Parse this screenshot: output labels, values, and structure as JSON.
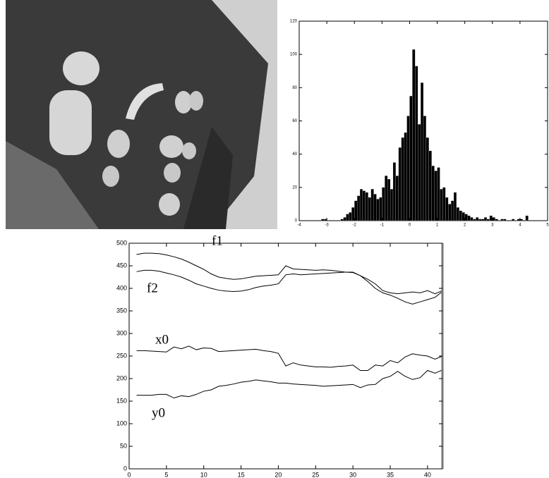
{
  "chart_data": [
    {
      "type": "histogram",
      "bins": [
        -4,
        -3.9,
        -3.8,
        -3.7,
        -3.6,
        -3.5,
        -3.4,
        -3.3,
        -3.2,
        -3.1,
        -3,
        -2.9,
        -2.8,
        -2.7,
        -2.6,
        -2.5,
        -2.4,
        -2.3,
        -2.2,
        -2.1,
        -2,
        -1.9,
        -1.8,
        -1.7,
        -1.6,
        -1.5,
        -1.4,
        -1.3,
        -1.2,
        -1.1,
        -1,
        -0.9,
        -0.8,
        -0.7,
        -0.6,
        -0.5,
        -0.4,
        -0.3,
        -0.2,
        -0.1,
        0,
        0.1,
        0.2,
        0.3,
        0.4,
        0.5,
        0.6,
        0.7,
        0.8,
        0.9,
        1,
        1.1,
        1.2,
        1.3,
        1.4,
        1.5,
        1.6,
        1.7,
        1.8,
        1.9,
        2,
        2.1,
        2.2,
        2.3,
        2.4,
        2.5,
        2.6,
        2.7,
        2.8,
        2.9,
        3,
        3.1,
        3.2,
        3.3,
        3.4,
        3.5,
        3.6,
        3.7,
        3.8,
        3.9,
        4,
        4.1,
        4.2,
        4.3,
        4.4,
        4.5,
        4.6,
        4.7,
        4.8,
        4.9,
        5
      ],
      "counts": [
        0,
        0,
        0,
        0,
        0,
        0,
        0,
        0,
        1,
        1,
        0,
        0,
        0,
        0,
        0,
        1,
        2,
        4,
        5,
        8,
        12,
        15,
        19,
        18,
        17,
        14,
        19,
        16,
        13,
        14,
        20,
        27,
        25,
        19,
        35,
        27,
        44,
        50,
        53,
        63,
        75,
        103,
        93,
        58,
        83,
        63,
        50,
        42,
        33,
        30,
        32,
        19,
        20,
        14,
        10,
        12,
        17,
        8,
        6,
        5,
        4,
        3,
        2,
        1,
        2,
        1,
        1,
        2,
        1,
        3,
        2,
        1,
        0,
        1,
        1,
        0,
        0,
        1,
        0,
        1,
        1,
        0,
        3,
        0,
        0,
        0,
        0,
        0,
        0,
        0
      ],
      "color": "#000000",
      "xlim": [
        -4,
        5
      ],
      "xticks": [
        -4,
        -3,
        -2,
        -1,
        0,
        1,
        2,
        3,
        4,
        5
      ],
      "ylim": [
        0,
        120
      ],
      "yticks": [
        0,
        20,
        40,
        60,
        80,
        100,
        120
      ]
    },
    {
      "type": "line",
      "x": [
        1,
        2,
        3,
        4,
        5,
        6,
        7,
        8,
        9,
        10,
        11,
        12,
        13,
        14,
        15,
        16,
        17,
        18,
        19,
        20,
        21,
        22,
        23,
        24,
        25,
        26,
        27,
        28,
        29,
        30,
        31,
        32,
        33,
        34,
        35,
        36,
        37,
        38,
        39,
        40,
        41,
        42
      ],
      "series": [
        {
          "name": "f1",
          "color": "#000000",
          "values": [
            475,
            478,
            478,
            477,
            474,
            470,
            465,
            458,
            450,
            442,
            432,
            425,
            422,
            420,
            421,
            424,
            427,
            428,
            429,
            430,
            450,
            443,
            442,
            441,
            440,
            441,
            440,
            438,
            436,
            435,
            428,
            420,
            410,
            395,
            390,
            388,
            390,
            392,
            390,
            395,
            388,
            395
          ]
        },
        {
          "name": "f2",
          "color": "#000000",
          "values": [
            437,
            440,
            440,
            438,
            434,
            430,
            425,
            418,
            410,
            405,
            400,
            396,
            394,
            393,
            394,
            397,
            402,
            405,
            407,
            410,
            430,
            432,
            430,
            431,
            432,
            433,
            434,
            435,
            436,
            436,
            428,
            415,
            400,
            390,
            385,
            378,
            370,
            365,
            370,
            375,
            380,
            393
          ]
        },
        {
          "name": "x0",
          "color": "#000000",
          "values": [
            262,
            262,
            261,
            260,
            259,
            270,
            266,
            272,
            264,
            268,
            267,
            260,
            261,
            262,
            263,
            264,
            265,
            262,
            260,
            256,
            228,
            235,
            230,
            228,
            226,
            226,
            225,
            227,
            228,
            230,
            218,
            218,
            230,
            228,
            240,
            235,
            248,
            255,
            252,
            250,
            243,
            250
          ]
        },
        {
          "name": "y0",
          "color": "#000000",
          "values": [
            163,
            163,
            163,
            165,
            165,
            157,
            162,
            160,
            165,
            172,
            175,
            183,
            185,
            188,
            192,
            194,
            197,
            195,
            193,
            190,
            190,
            188,
            187,
            186,
            185,
            183,
            184,
            185,
            186,
            187,
            180,
            186,
            187,
            200,
            205,
            216,
            205,
            198,
            202,
            218,
            212,
            219
          ]
        }
      ],
      "xlim": [
        0,
        42
      ],
      "xticks": [
        0,
        5,
        10,
        15,
        20,
        25,
        30,
        35,
        40
      ],
      "ylim": [
        0,
        500
      ],
      "yticks": [
        0,
        50,
        100,
        150,
        200,
        250,
        300,
        350,
        400,
        450,
        500
      ]
    }
  ]
}
